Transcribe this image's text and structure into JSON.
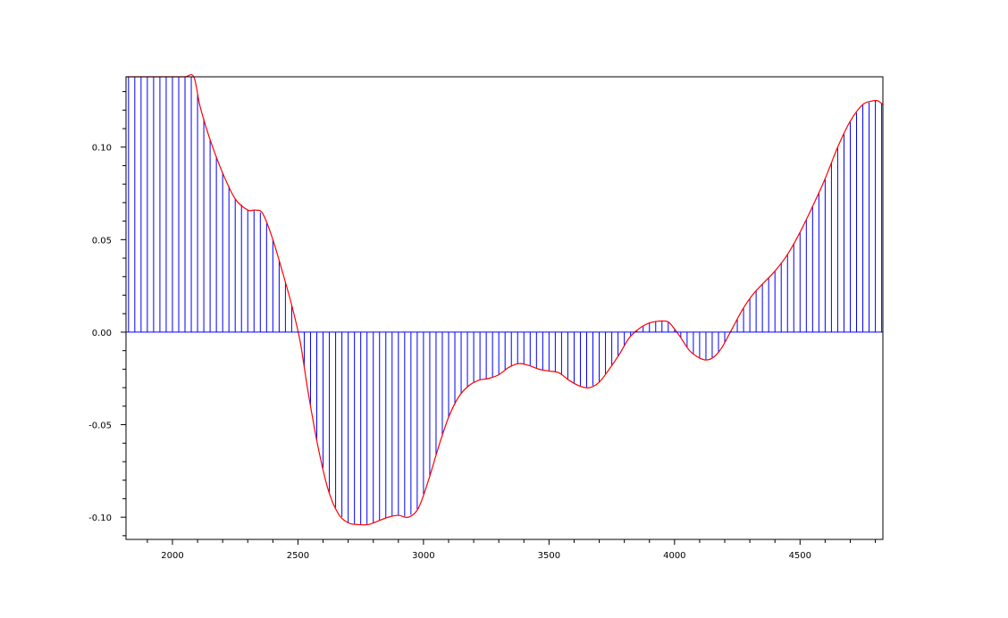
{
  "chart_data": {
    "type": "line",
    "title": "",
    "xlabel": "",
    "ylabel": "",
    "xlim": [
      1815,
      4830
    ],
    "ylim": [
      -0.112,
      0.138
    ],
    "x_ticks": [
      2000,
      2500,
      3000,
      3500,
      4000,
      4500
    ],
    "x_tick_labels": [
      "2000",
      "2500",
      "3000",
      "3500",
      "4000",
      "4500"
    ],
    "y_ticks": [
      0.1,
      0.05,
      0.0,
      -0.05,
      -0.1
    ],
    "y_tick_labels": [
      "0.10",
      "0.05",
      "0.00",
      "-0.05",
      "-0.10"
    ],
    "grid": false,
    "legend": "none",
    "series": [
      {
        "style": "envelope",
        "color": "#ff0000",
        "x": [
          1815,
          1850,
          1900,
          1950,
          2000,
          2050,
          2085,
          2110,
          2150,
          2200,
          2250,
          2300,
          2330,
          2360,
          2400,
          2450,
          2480,
          2510,
          2540,
          2580,
          2620,
          2660,
          2700,
          2740,
          2780,
          2820,
          2860,
          2900,
          2940,
          2980,
          3020,
          3060,
          3100,
          3140,
          3180,
          3220,
          3260,
          3300,
          3340,
          3380,
          3420,
          3460,
          3500,
          3540,
          3580,
          3620,
          3660,
          3700,
          3740,
          3780,
          3820,
          3860,
          3900,
          3940,
          3960,
          3980,
          4020,
          4060,
          4100,
          4130,
          4160,
          4190,
          4230,
          4270,
          4310,
          4350,
          4400,
          4450,
          4500,
          4550,
          4600,
          4650,
          4700,
          4750,
          4790,
          4810,
          4830
        ],
        "y": [
          0.138,
          0.138,
          0.138,
          0.138,
          0.138,
          0.138,
          0.138,
          0.122,
          0.104,
          0.086,
          0.072,
          0.066,
          0.066,
          0.064,
          0.05,
          0.027,
          0.012,
          -0.006,
          -0.032,
          -0.062,
          -0.085,
          -0.098,
          -0.103,
          -0.104,
          -0.104,
          -0.102,
          -0.1,
          -0.099,
          -0.1,
          -0.095,
          -0.08,
          -0.062,
          -0.046,
          -0.035,
          -0.029,
          -0.026,
          -0.025,
          -0.023,
          -0.019,
          -0.017,
          -0.018,
          -0.02,
          -0.021,
          -0.022,
          -0.026,
          -0.029,
          -0.03,
          -0.027,
          -0.02,
          -0.012,
          -0.003,
          0.002,
          0.005,
          0.006,
          0.006,
          0.005,
          -0.002,
          -0.01,
          -0.014,
          -0.015,
          -0.013,
          -0.008,
          0.002,
          0.012,
          0.02,
          0.026,
          0.033,
          0.042,
          0.054,
          0.068,
          0.083,
          0.1,
          0.114,
          0.123,
          0.125,
          0.125,
          0.123
        ]
      },
      {
        "style": "stems",
        "color": "#0000ff",
        "x_start": 1825,
        "x_step": 25,
        "count": 121
      }
    ]
  }
}
